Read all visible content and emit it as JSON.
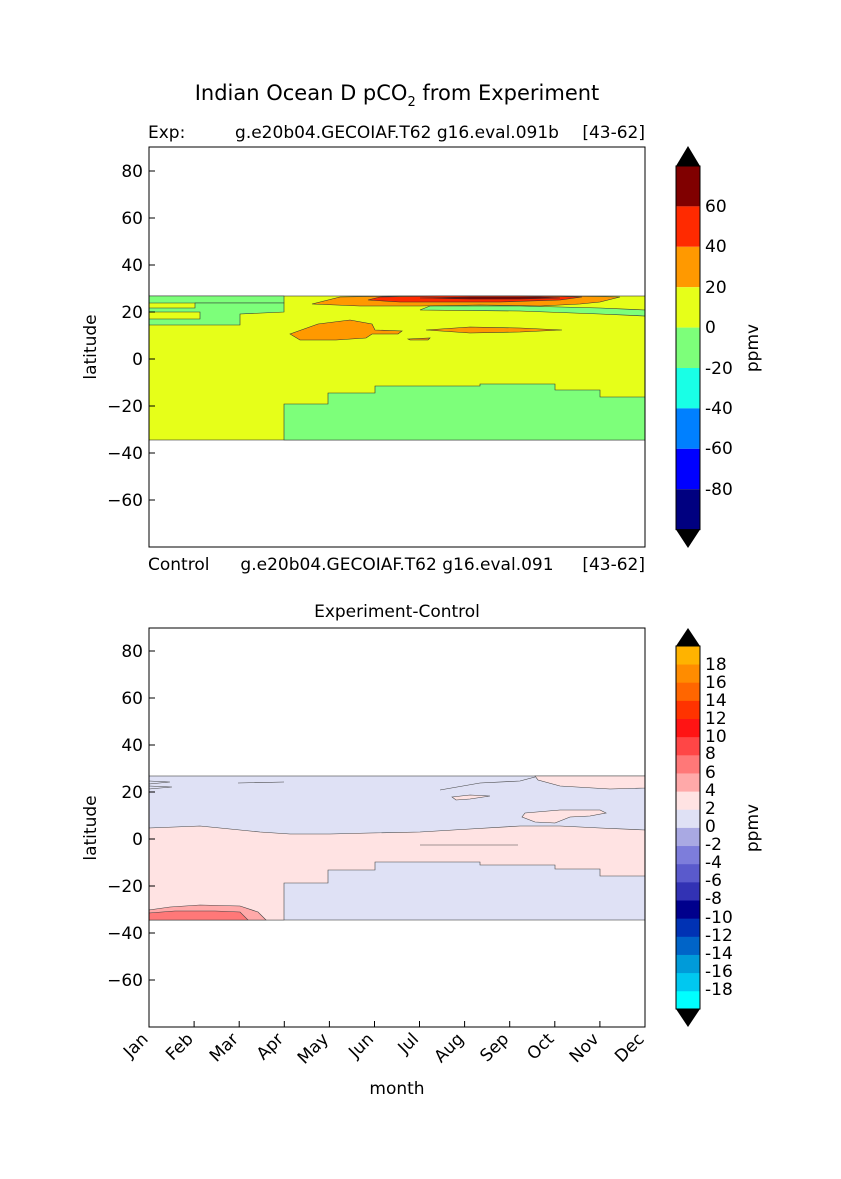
{
  "figure": {
    "title_main": "Indian Ocean D pCO",
    "title_sub": "2",
    "title_tail": " from Experiment"
  },
  "colors": {
    "top": [
      "#000080",
      "#0000ff",
      "#0080ff",
      "#19ffe6",
      "#7dff7a",
      "#e6ff19",
      "#ff9900",
      "#ff2a00",
      "#800000"
    ],
    "bottom": [
      "#00ffff",
      "#00c8f0",
      "#009bd9",
      "#0064c8",
      "#0032b4",
      "#00008c",
      "#3232b4",
      "#5a5acc",
      "#7d7ddb",
      "#a9a9e3",
      "#dfe1f5",
      "#ffe3e3",
      "#ffa9a9",
      "#ff7878",
      "#ff4646",
      "#ff1414",
      "#ff3300",
      "#ff6600",
      "#ff8c00",
      "#ffb300",
      "#ffff00"
    ]
  },
  "chart_data": [
    {
      "type": "contour",
      "title_left": "Exp:",
      "title_center": "g.e20b04.GECOIAF.T62 g16.eval.091b",
      "title_right": "[43-62]",
      "xlabel": "",
      "ylabel": "latitude",
      "xlim": [
        0,
        11
      ],
      "ylim": [
        -80,
        90
      ],
      "yticks": [
        80,
        60,
        40,
        20,
        0,
        -20,
        -40,
        -60
      ],
      "ytick_labels": [
        "80",
        "60",
        "40",
        "20",
        "0",
        "−20",
        "−40",
        "−60"
      ],
      "data_lat_range": [
        -34,
        27
      ],
      "colorbar": {
        "label": "ppmv",
        "levels": [
          -100,
          -80,
          -60,
          -40,
          -20,
          0,
          20,
          40,
          60,
          80
        ],
        "tick_values": [
          60,
          40,
          20,
          0,
          -20,
          -40,
          -60,
          -80
        ],
        "tick_labels": [
          "60",
          "40",
          "20",
          "0",
          "-20",
          "-40",
          "-60",
          "-80"
        ]
      },
      "regions": [
        {
          "level": "0 to 20",
          "desc": "most of domain"
        },
        {
          "level": "-20 to 0",
          "desc": "south of ~-18 lat from Apr to Dec"
        },
        {
          "level": "-20 to 0",
          "desc": "band 18-27 lat Jan to Apr"
        },
        {
          "level": "20 to 40",
          "desc": "patches near 10-15 lat and 25 lat May-Oct"
        },
        {
          "level": "40 to 60",
          "desc": "strip near 26 lat Jun-Sep"
        },
        {
          "level": "60 to 80",
          "desc": "thin strip near 27 lat Jul-Sep"
        }
      ]
    },
    {
      "type": "contour",
      "title_left": "Control",
      "title_center": "g.e20b04.GECOIAF.T62 g16.eval.091",
      "title_right": "[43-62]",
      "subtitle": "Experiment-Control",
      "xlabel": "month",
      "ylabel": "latitude",
      "xlim": [
        0,
        11
      ],
      "ylim": [
        -80,
        90
      ],
      "categories": [
        "Jan",
        "Feb",
        "Mar",
        "Apr",
        "May",
        "Jun",
        "Jul",
        "Aug",
        "Sep",
        "Oct",
        "Nov",
        "Dec"
      ],
      "yticks": [
        80,
        60,
        40,
        20,
        0,
        -20,
        -40,
        -60
      ],
      "ytick_labels": [
        "80",
        "60",
        "40",
        "20",
        "0",
        "−20",
        "−40",
        "−60"
      ],
      "data_lat_range": [
        -34,
        27
      ],
      "colorbar": {
        "label": "ppmv",
        "levels": [
          -20,
          -18,
          -16,
          -14,
          -12,
          -10,
          -8,
          -6,
          -4,
          -2,
          0,
          2,
          4,
          6,
          8,
          10,
          12,
          14,
          16,
          18,
          20
        ],
        "tick_values": [
          18,
          16,
          14,
          12,
          10,
          8,
          6,
          4,
          2,
          0,
          -2,
          -4,
          -6,
          -8,
          -10,
          -12,
          -14,
          -16,
          -18
        ],
        "tick_labels": [
          "18",
          "16",
          "14",
          "12",
          "10",
          "8",
          "6",
          "4",
          "2",
          "0",
          "-2",
          "-4",
          "-6",
          "-8",
          "-10",
          "-12",
          "-14",
          "-16",
          "-18"
        ]
      },
      "regions": [
        {
          "level": "-2 to 0",
          "desc": "north of ~2-5 lat"
        },
        {
          "level": "0 to 2",
          "desc": "between ~-18 and ~3 lat"
        },
        {
          "level": "-2 to 0",
          "desc": "south of ~-18 lat from Apr to Dec"
        },
        {
          "level": "2 to 4",
          "desc": "corner near -30 lat Jan-Mar"
        },
        {
          "level": "4 to 6",
          "desc": "corner near -33 lat Jan-Mar"
        }
      ]
    }
  ]
}
